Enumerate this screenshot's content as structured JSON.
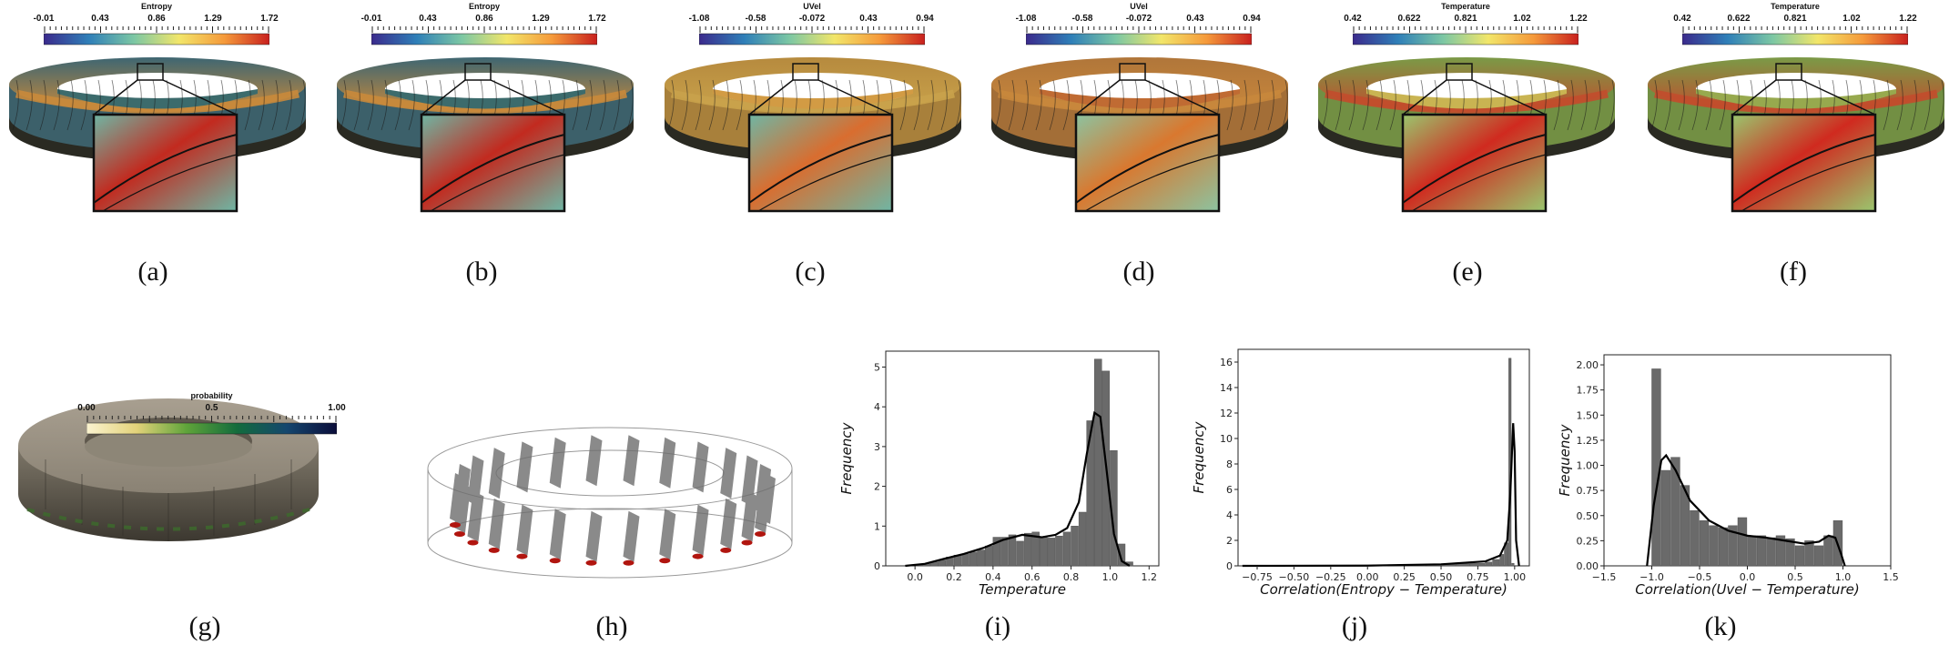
{
  "captions": [
    "(a)",
    "(b)",
    "(c)",
    "(d)",
    "(e)",
    "(f)",
    "(g)",
    "(h)",
    "(i)",
    "(j)",
    "(k)"
  ],
  "colorbars": [
    {
      "title": "Entropy",
      "ticks": [
        "-0.01",
        "0.43",
        "0.86",
        "1.29",
        "1.72"
      ],
      "colors": [
        "#3b2a8c",
        "#2f7fb8",
        "#7cc7a4",
        "#f2e66a",
        "#f59a3b",
        "#c8201e"
      ]
    },
    {
      "title": "Entropy",
      "ticks": [
        "-0.01",
        "0.43",
        "0.86",
        "1.29",
        "1.72"
      ],
      "colors": [
        "#3b2a8c",
        "#2f7fb8",
        "#7cc7a4",
        "#f2e66a",
        "#f59a3b",
        "#c8201e"
      ]
    },
    {
      "title": "UVel",
      "ticks": [
        "-1.08",
        "-0.58",
        "-0.072",
        "0.43",
        "0.94"
      ],
      "colors": [
        "#3b2a8c",
        "#2f7fb8",
        "#7cc7a4",
        "#f2e66a",
        "#f59a3b",
        "#c8201e"
      ]
    },
    {
      "title": "UVel",
      "ticks": [
        "-1.08",
        "-0.58",
        "-0.072",
        "0.43",
        "0.94"
      ],
      "colors": [
        "#3b2a8c",
        "#2f7fb8",
        "#7cc7a4",
        "#f2e66a",
        "#f59a3b",
        "#c8201e"
      ]
    },
    {
      "title": "Temperature",
      "ticks": [
        "0.42",
        "0.622",
        "0.821",
        "1.02",
        "1.22"
      ],
      "colors": [
        "#3b2a8c",
        "#2f7fb8",
        "#7cc7a4",
        "#f2e66a",
        "#f59a3b",
        "#c8201e"
      ]
    },
    {
      "title": "Temperature",
      "ticks": [
        "0.42",
        "0.622",
        "0.821",
        "1.02",
        "1.22"
      ],
      "colors": [
        "#3b2a8c",
        "#2f7fb8",
        "#7cc7a4",
        "#f2e66a",
        "#f59a3b",
        "#c8201e"
      ]
    },
    {
      "title": "probability",
      "ticks": [
        "0.00",
        "0.5",
        "1.00"
      ],
      "colors": [
        "#fbf3d0",
        "#e3d27a",
        "#5fa43a",
        "#136c3c",
        "#14466e",
        "#0b0d3a"
      ]
    }
  ],
  "ring_colors": [
    {
      "top": "#3e6672",
      "band": "#c98a3b",
      "inner": "#3c6b6c",
      "zoom": [
        "#c22a1f",
        "#6fb6a4"
      ]
    },
    {
      "top": "#3e6672",
      "band": "#c98a3b",
      "inner": "#3c6b6c",
      "zoom": [
        "#c22a1f",
        "#6fb6a4"
      ]
    },
    {
      "top": "#b68a3e",
      "band": "#c9a24b",
      "inner": "#d29b44",
      "zoom": [
        "#d96d2f",
        "#6fb6a4"
      ]
    },
    {
      "top": "#b0763a",
      "band": "#c8873c",
      "inner": "#c06b33",
      "zoom": [
        "#d9782f",
        "#8cc3a0"
      ]
    },
    {
      "top": "#7a9a47",
      "band": "#c24d2c",
      "inner": "#c9b452",
      "zoom": [
        "#d02a1f",
        "#9ac66e"
      ]
    },
    {
      "top": "#7a9a47",
      "band": "#c24d2c",
      "inner": "#97a94e",
      "zoom": [
        "#d02a1f",
        "#9ac66e"
      ]
    }
  ],
  "chart_data": [
    {
      "type": "histogram",
      "panel": "(i)",
      "xlabel": "Temperature",
      "ylabel": "Frequency",
      "xlim": [
        -0.15,
        1.25
      ],
      "ylim": [
        0,
        5.4
      ],
      "xticks": [
        "0.0",
        "0.2",
        "0.4",
        "0.6",
        "0.8",
        "1.0",
        "1.2"
      ],
      "xtick_values": [
        0.0,
        0.2,
        0.4,
        0.6,
        0.8,
        1.0,
        1.2
      ],
      "yticks": [
        "0",
        "1",
        "2",
        "3",
        "4",
        "5"
      ],
      "ytick_values": [
        0,
        1,
        2,
        3,
        4,
        5
      ],
      "bins": [
        0.0,
        0.04,
        0.08,
        0.12,
        0.16,
        0.2,
        0.24,
        0.28,
        0.32,
        0.36,
        0.4,
        0.44,
        0.48,
        0.52,
        0.56,
        0.6,
        0.64,
        0.68,
        0.72,
        0.76,
        0.8,
        0.84,
        0.88,
        0.92,
        0.96,
        1.0,
        1.04,
        1.08
      ],
      "values": [
        0.02,
        0.05,
        0.1,
        0.15,
        0.22,
        0.27,
        0.3,
        0.35,
        0.4,
        0.5,
        0.72,
        0.72,
        0.78,
        0.62,
        0.82,
        0.85,
        0.72,
        0.7,
        0.75,
        0.85,
        1.0,
        1.35,
        3.65,
        5.2,
        4.9,
        2.9,
        0.55,
        0.1
      ],
      "kde_x": [
        -0.05,
        0.05,
        0.15,
        0.25,
        0.35,
        0.45,
        0.55,
        0.65,
        0.72,
        0.78,
        0.84,
        0.88,
        0.92,
        0.95,
        0.98,
        1.02,
        1.06,
        1.1
      ],
      "kde_y": [
        0.0,
        0.05,
        0.18,
        0.3,
        0.45,
        0.65,
        0.78,
        0.72,
        0.78,
        0.95,
        1.6,
        2.8,
        3.85,
        3.75,
        2.5,
        0.8,
        0.12,
        0.0
      ]
    },
    {
      "type": "histogram",
      "panel": "(j)",
      "xlabel": "Correlation(Entropy − Temperature)",
      "ylabel": "Frequency",
      "xlim": [
        -0.88,
        1.1
      ],
      "ylim": [
        0,
        17
      ],
      "xticks": [
        "−0.75",
        "−0.50",
        "−0.25",
        "0.00",
        "0.25",
        "0.50",
        "0.75",
        "1.00"
      ],
      "xtick_values": [
        -0.75,
        -0.5,
        -0.25,
        0.0,
        0.25,
        0.5,
        0.75,
        1.0
      ],
      "yticks": [
        "0",
        "2",
        "4",
        "6",
        "8",
        "10",
        "12",
        "14",
        "16"
      ],
      "ytick_values": [
        0,
        2,
        4,
        6,
        8,
        10,
        12,
        14,
        16
      ],
      "bins": [
        -0.8,
        -0.6,
        -0.4,
        -0.2,
        0.0,
        0.2,
        0.4,
        0.6,
        0.7,
        0.8,
        0.85,
        0.9,
        0.93,
        0.96,
        0.98
      ],
      "values": [
        0.02,
        0.03,
        0.03,
        0.04,
        0.05,
        0.1,
        0.12,
        0.18,
        0.2,
        0.3,
        0.5,
        0.9,
        1.8,
        16.3,
        0.2
      ],
      "bin_widths": [
        0.2,
        0.2,
        0.2,
        0.2,
        0.2,
        0.2,
        0.2,
        0.1,
        0.1,
        0.05,
        0.05,
        0.03,
        0.03,
        0.02,
        0.02
      ],
      "kde_x": [
        -0.85,
        0.0,
        0.5,
        0.8,
        0.9,
        0.95,
        0.97,
        0.99,
        1.0,
        1.01,
        1.03
      ],
      "kde_y": [
        0.0,
        0.02,
        0.12,
        0.35,
        0.8,
        2.0,
        5.5,
        11.2,
        9.0,
        2.0,
        0.0
      ]
    },
    {
      "type": "histogram",
      "panel": "(k)",
      "xlabel": "Correlation(Uvel − Temperature)",
      "ylabel": "Frequency",
      "xlim": [
        -1.5,
        1.5
      ],
      "ylim": [
        0,
        2.1
      ],
      "xticks": [
        "−1.5",
        "−1.0",
        "−0.5",
        "0.0",
        "0.5",
        "1.0",
        "1.5"
      ],
      "xtick_values": [
        -1.5,
        -1.0,
        -0.5,
        0.0,
        0.5,
        1.0,
        1.5
      ],
      "yticks": [
        "0.00",
        "0.25",
        "0.50",
        "0.75",
        "1.00",
        "1.25",
        "1.50",
        "1.75",
        "2.00"
      ],
      "ytick_values": [
        0,
        0.25,
        0.5,
        0.75,
        1.0,
        1.25,
        1.5,
        1.75,
        2.0
      ],
      "bins": [
        -1.0,
        -0.9,
        -0.8,
        -0.7,
        -0.6,
        -0.5,
        -0.4,
        -0.3,
        -0.2,
        -0.1,
        0.0,
        0.1,
        0.2,
        0.3,
        0.4,
        0.5,
        0.6,
        0.7,
        0.8,
        0.9
      ],
      "values": [
        1.96,
        0.95,
        1.08,
        0.8,
        0.55,
        0.45,
        0.4,
        0.38,
        0.4,
        0.48,
        0.3,
        0.3,
        0.28,
        0.3,
        0.27,
        0.2,
        0.25,
        0.2,
        0.3,
        0.45
      ],
      "kde_x": [
        -1.05,
        -0.98,
        -0.9,
        -0.85,
        -0.75,
        -0.6,
        -0.4,
        -0.2,
        0.0,
        0.2,
        0.4,
        0.6,
        0.75,
        0.85,
        0.92,
        0.98,
        1.02
      ],
      "kde_y": [
        0.0,
        0.6,
        1.05,
        1.1,
        0.95,
        0.65,
        0.45,
        0.35,
        0.3,
        0.28,
        0.25,
        0.22,
        0.24,
        0.3,
        0.28,
        0.12,
        0.0
      ]
    }
  ]
}
